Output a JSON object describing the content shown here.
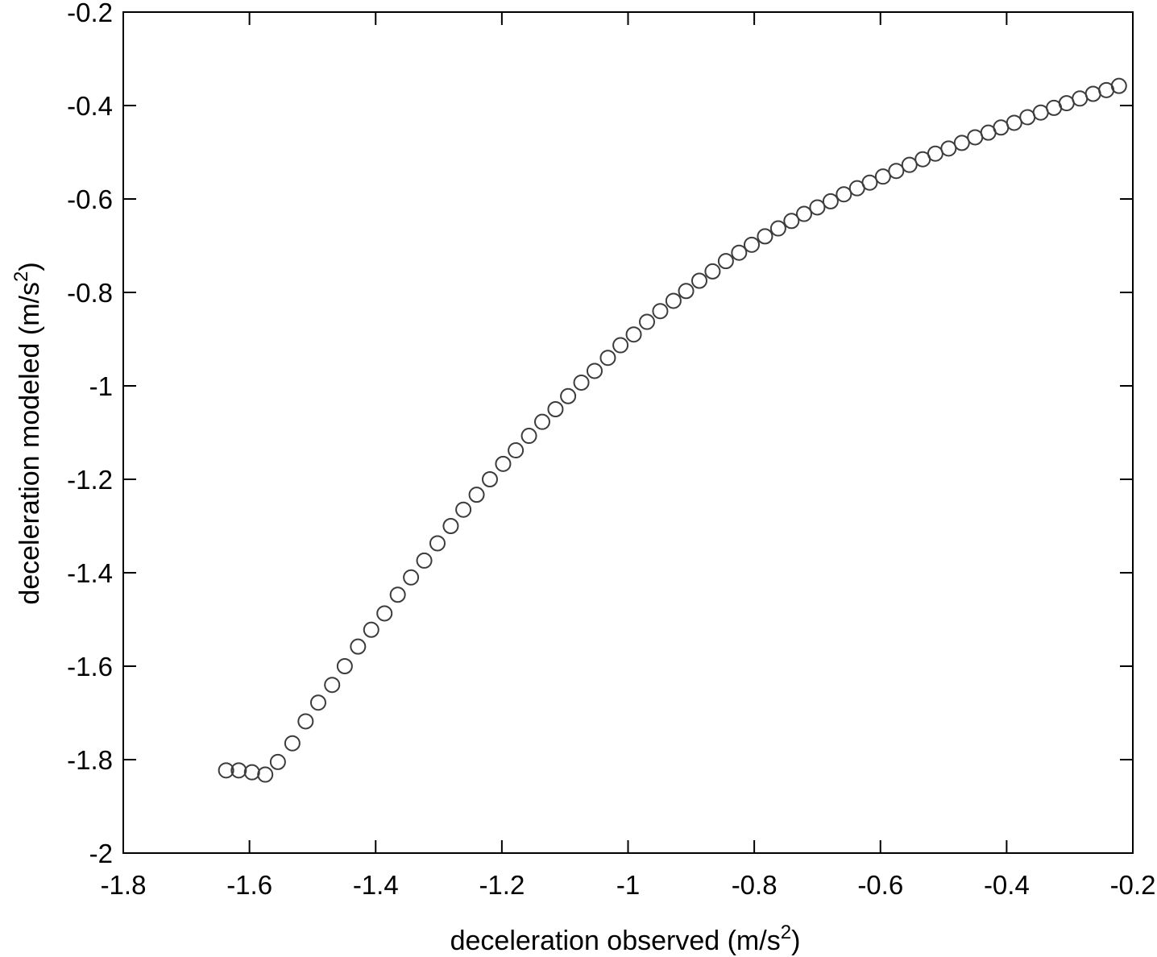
{
  "chart_data": {
    "type": "scatter",
    "title": "",
    "xlabel": {
      "main": "deceleration observed (m/s",
      "sup": "2",
      "close": ")"
    },
    "ylabel": {
      "main": "deceleration modeled (m/s",
      "sup": "2",
      "close": ")"
    },
    "xlim": [
      -1.8,
      -0.2
    ],
    "ylim": [
      -2,
      -0.2
    ],
    "xticks": [
      -1.8,
      -1.6,
      -1.4,
      -1.2,
      -1,
      -0.8,
      -0.6,
      -0.4,
      -0.2
    ],
    "yticks": [
      -2,
      -1.8,
      -1.6,
      -1.4,
      -1.2,
      -1,
      -0.8,
      -0.6,
      -0.4,
      -0.2
    ],
    "xtick_labels": [
      "-1.8",
      "-1.6",
      "-1.4",
      "-1.2",
      "-1",
      "-0.8",
      "-0.6",
      "-0.4",
      "-0.2"
    ],
    "ytick_labels": [
      "-2",
      "-1.8",
      "-1.6",
      "-1.4",
      "-1.2",
      "-1",
      "-0.8",
      "-0.6",
      "-0.4",
      "-0.2"
    ],
    "grid": false,
    "legend": "none",
    "marker": "open-circle",
    "color": "#3c3c3c",
    "points": [
      [
        -1.637,
        -1.823
      ],
      [
        -1.617,
        -1.823
      ],
      [
        -1.596,
        -1.827
      ],
      [
        -1.575,
        -1.832
      ],
      [
        -1.555,
        -1.805
      ],
      [
        -1.532,
        -1.765
      ],
      [
        -1.511,
        -1.718
      ],
      [
        -1.491,
        -1.678
      ],
      [
        -1.469,
        -1.64
      ],
      [
        -1.449,
        -1.6
      ],
      [
        -1.428,
        -1.558
      ],
      [
        -1.407,
        -1.522
      ],
      [
        -1.386,
        -1.487
      ],
      [
        -1.365,
        -1.447
      ],
      [
        -1.344,
        -1.41
      ],
      [
        -1.323,
        -1.374
      ],
      [
        -1.302,
        -1.337
      ],
      [
        -1.281,
        -1.3
      ],
      [
        -1.261,
        -1.265
      ],
      [
        -1.24,
        -1.233
      ],
      [
        -1.219,
        -1.2
      ],
      [
        -1.198,
        -1.167
      ],
      [
        -1.178,
        -1.138
      ],
      [
        -1.157,
        -1.107
      ],
      [
        -1.136,
        -1.077
      ],
      [
        -1.115,
        -1.05
      ],
      [
        -1.095,
        -1.022
      ],
      [
        -1.074,
        -0.993
      ],
      [
        -1.053,
        -0.968
      ],
      [
        -1.032,
        -0.94
      ],
      [
        -1.012,
        -0.913
      ],
      [
        -0.991,
        -0.89
      ],
      [
        -0.97,
        -0.863
      ],
      [
        -0.949,
        -0.84
      ],
      [
        -0.928,
        -0.818
      ],
      [
        -0.908,
        -0.797
      ],
      [
        -0.887,
        -0.775
      ],
      [
        -0.866,
        -0.755
      ],
      [
        -0.845,
        -0.733
      ],
      [
        -0.824,
        -0.715
      ],
      [
        -0.804,
        -0.698
      ],
      [
        -0.783,
        -0.68
      ],
      [
        -0.762,
        -0.663
      ],
      [
        -0.741,
        -0.647
      ],
      [
        -0.721,
        -0.632
      ],
      [
        -0.7,
        -0.618
      ],
      [
        -0.679,
        -0.605
      ],
      [
        -0.658,
        -0.59
      ],
      [
        -0.637,
        -0.577
      ],
      [
        -0.617,
        -0.565
      ],
      [
        -0.596,
        -0.552
      ],
      [
        -0.575,
        -0.54
      ],
      [
        -0.554,
        -0.527
      ],
      [
        -0.533,
        -0.515
      ],
      [
        -0.513,
        -0.503
      ],
      [
        -0.492,
        -0.492
      ],
      [
        -0.471,
        -0.48
      ],
      [
        -0.45,
        -0.468
      ],
      [
        -0.429,
        -0.458
      ],
      [
        -0.409,
        -0.447
      ],
      [
        -0.388,
        -0.437
      ],
      [
        -0.367,
        -0.425
      ],
      [
        -0.346,
        -0.415
      ],
      [
        -0.325,
        -0.405
      ],
      [
        -0.305,
        -0.395
      ],
      [
        -0.284,
        -0.385
      ],
      [
        -0.263,
        -0.375
      ],
      [
        -0.242,
        -0.367
      ],
      [
        -0.222,
        -0.358
      ]
    ]
  }
}
